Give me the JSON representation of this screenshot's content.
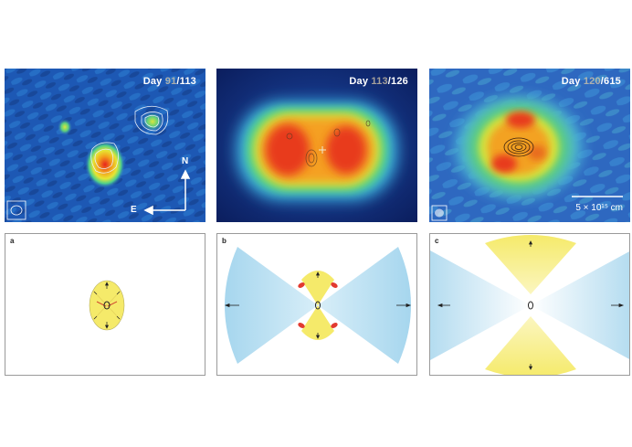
{
  "panels": [
    {
      "day_prefix": "Day ",
      "day_dim": "91",
      "day_total": "/113"
    },
    {
      "day_prefix": "Day ",
      "day_dim": "113",
      "day_total": "/126"
    },
    {
      "day_prefix": "Day ",
      "day_dim": "120",
      "day_total": "/615"
    }
  ],
  "compass": {
    "north": "N",
    "east": "E"
  },
  "scale_bar": {
    "label": "5 × 10¹⁵ cm"
  },
  "schematics": [
    {
      "letter": "a"
    },
    {
      "letter": "b"
    },
    {
      "letter": "c"
    }
  ],
  "colors": {
    "background_blue": "#1f4fa8",
    "hot_red": "#e8241e",
    "jet_blue": "#a8d8ee",
    "torus_yellow": "#f5ea6a"
  }
}
